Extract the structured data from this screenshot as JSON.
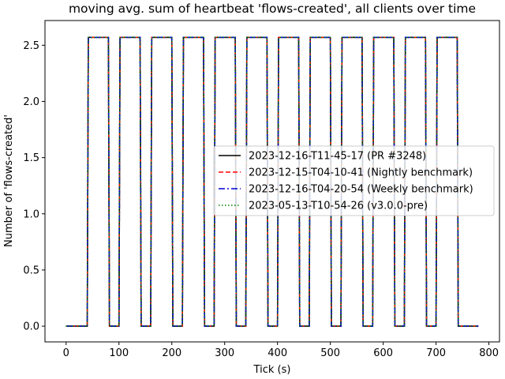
{
  "chart_data": {
    "type": "line",
    "title": "moving avg. sum of heartbeat 'flows-created', all clients over time",
    "xlabel": "Tick (s)",
    "ylabel": "Number of 'flows-created'",
    "xlim": [
      -40,
      820
    ],
    "ylim": [
      -0.14,
      2.72
    ],
    "xticks": [
      0,
      100,
      200,
      300,
      400,
      500,
      600,
      700,
      800
    ],
    "yticks": [
      0.0,
      0.5,
      1.0,
      1.5,
      2.0,
      2.5
    ],
    "ytick_labels": [
      "0.0",
      "0.5",
      "1.0",
      "1.5",
      "2.0",
      "2.5"
    ],
    "grid": false,
    "legend_position": "center-right",
    "x": [
      0,
      40,
      42,
      80,
      82,
      100,
      102,
      140,
      142,
      160,
      162,
      200,
      202,
      220,
      222,
      260,
      262,
      280,
      282,
      320,
      322,
      340,
      342,
      380,
      382,
      400,
      402,
      440,
      442,
      460,
      462,
      500,
      502,
      520,
      522,
      560,
      562,
      580,
      582,
      620,
      622,
      640,
      642,
      680,
      682,
      700,
      702,
      740,
      742,
      780
    ],
    "series": [
      {
        "name": "2023-12-16-T11-45-17 (PR #3248)",
        "color": "#000000",
        "style": "solid",
        "values": [
          0,
          0,
          2.57,
          2.57,
          0,
          0,
          2.57,
          2.57,
          0,
          0,
          2.57,
          2.57,
          0,
          0,
          2.57,
          2.57,
          0,
          0,
          2.57,
          2.57,
          0,
          0,
          2.57,
          2.57,
          0,
          0,
          2.57,
          2.57,
          0,
          0,
          2.57,
          2.57,
          0,
          0,
          2.57,
          2.57,
          0,
          0,
          2.57,
          2.57,
          0,
          0,
          2.57,
          2.57,
          0,
          0,
          2.57,
          2.57,
          0,
          0
        ]
      },
      {
        "name": "2023-12-15-T04-10-41 (Nightly benchmark)",
        "color": "#ff0000",
        "style": "dashed",
        "values": [
          0,
          0,
          2.57,
          2.57,
          0,
          0,
          2.57,
          2.57,
          0,
          0,
          2.57,
          2.57,
          0,
          0,
          2.57,
          2.57,
          0,
          0,
          2.57,
          2.57,
          0,
          0,
          2.57,
          2.57,
          0,
          0,
          2.57,
          2.57,
          0,
          0,
          2.57,
          2.57,
          0,
          0,
          2.57,
          2.57,
          0,
          0,
          2.57,
          2.57,
          0,
          0,
          2.57,
          2.57,
          0,
          0,
          2.57,
          2.57,
          0,
          0
        ]
      },
      {
        "name": "2023-12-16-T04-20-54 (Weekly benchmark)",
        "color": "#0000cc",
        "style": "dashdot",
        "values": [
          0,
          0,
          2.57,
          2.57,
          0,
          0,
          2.57,
          2.57,
          0,
          0,
          2.57,
          2.57,
          0,
          0,
          2.57,
          2.57,
          0,
          0,
          2.57,
          2.57,
          0,
          0,
          2.57,
          2.57,
          0,
          0,
          2.57,
          2.57,
          0,
          0,
          2.57,
          2.57,
          0,
          0,
          2.57,
          2.57,
          0,
          0,
          2.57,
          2.57,
          0,
          0,
          2.57,
          2.57,
          0,
          0,
          2.57,
          2.57,
          0,
          0
        ]
      },
      {
        "name": "2023-05-13-T10-54-26 (v3.0.0-pre)",
        "color": "#008000",
        "style": "dotted",
        "values": [
          0,
          0,
          2.57,
          2.57,
          0,
          0,
          2.57,
          2.57,
          0,
          0,
          2.57,
          2.57,
          0,
          0,
          2.57,
          2.57,
          0,
          0,
          2.57,
          2.57,
          0,
          0,
          2.57,
          2.57,
          0,
          0,
          2.57,
          2.57,
          0,
          0,
          2.57,
          2.57,
          0,
          0,
          2.57,
          2.57,
          0,
          0,
          2.57,
          2.57,
          0,
          0,
          2.57,
          2.57,
          0,
          0,
          2.57,
          2.57,
          0,
          0
        ]
      }
    ]
  }
}
